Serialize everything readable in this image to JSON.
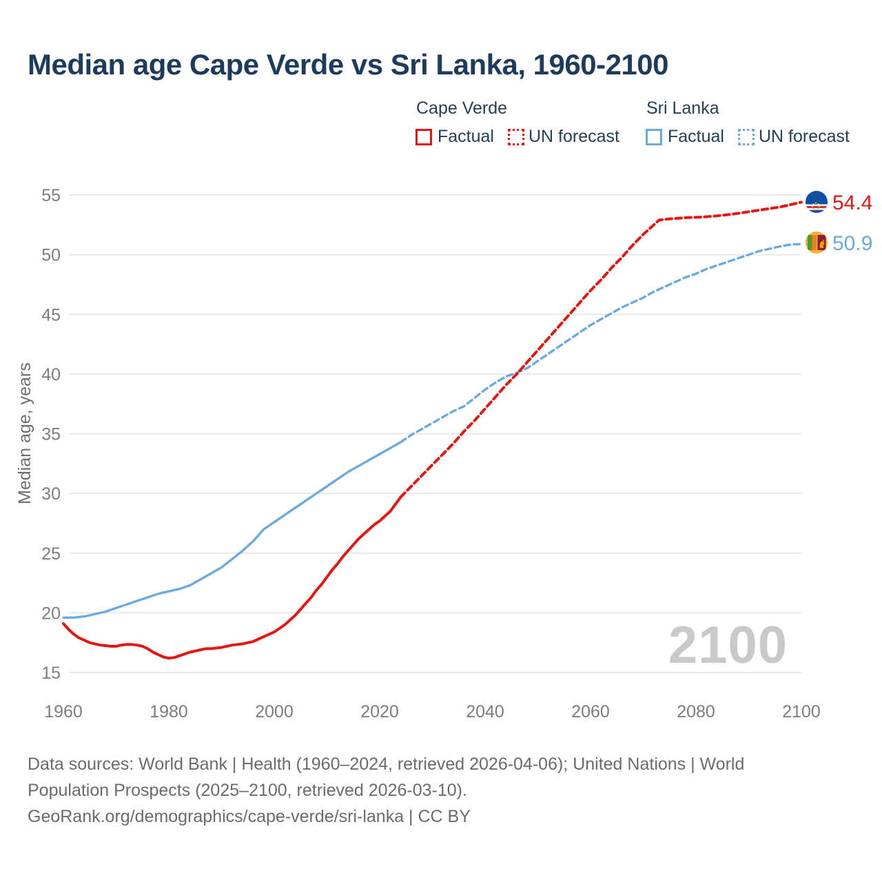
{
  "title": "Median age Cape Verde vs Sri Lanka, 1960-2100",
  "legend": {
    "cape_verde": {
      "label": "Cape Verde",
      "factual": "Factual",
      "forecast": "UN forecast"
    },
    "sri_lanka": {
      "label": "Sri Lanka",
      "factual": "Factual",
      "forecast": "UN forecast"
    }
  },
  "colors": {
    "cape_verde": "#e8150f",
    "sri_lanka": "#6aaae0",
    "title_text": "#1d3a5f",
    "axis_text": "#7d7d7d",
    "grid": "#e8e8e8",
    "watermark": "#c9c9c9",
    "footer_text": "#6b6b6b"
  },
  "watermark": "2100",
  "end_labels": {
    "cape_verde": "54.4",
    "sri_lanka": "50.9"
  },
  "flags": {
    "cape_verde": "cape-verde-flag",
    "sri_lanka": "sri-lanka-flag"
  },
  "footer": {
    "lines": [
      "Data sources: World Bank | Health (1960–2024, retrieved 2026-04-06); United Nations | World",
      "Population Prospects (2025–2100, retrieved 2026-03-10).",
      "GeoRank.org/demographics/cape-verde/sri-lanka | CC BY"
    ]
  },
  "chart_data": {
    "type": "line",
    "title": "Median age Cape Verde vs Sri Lanka, 1960-2100",
    "xlabel": "",
    "ylabel": "Median age, years",
    "xlim": [
      1958,
      2112
    ],
    "ylim": [
      13,
      57
    ],
    "grid": "horizontal",
    "legend_position": "top",
    "yticks": [
      15,
      20,
      25,
      30,
      35,
      40,
      45,
      50,
      55
    ],
    "xticks": [
      1960,
      1980,
      2000,
      2020,
      2040,
      2060,
      2080,
      2100
    ],
    "series": [
      {
        "name": "Sri Lanka — Factual",
        "color_key": "sri_lanka",
        "style": "solid",
        "points": [
          [
            1960,
            19.6
          ],
          [
            1962,
            19.6
          ],
          [
            1964,
            19.7
          ],
          [
            1966,
            19.9
          ],
          [
            1968,
            20.1
          ],
          [
            1970,
            20.4
          ],
          [
            1972,
            20.7
          ],
          [
            1974,
            21.0
          ],
          [
            1976,
            21.3
          ],
          [
            1978,
            21.6
          ],
          [
            1980,
            21.8
          ],
          [
            1982,
            22.0
          ],
          [
            1984,
            22.3
          ],
          [
            1986,
            22.8
          ],
          [
            1988,
            23.3
          ],
          [
            1990,
            23.8
          ],
          [
            1992,
            24.5
          ],
          [
            1994,
            25.2
          ],
          [
            1996,
            26.0
          ],
          [
            1998,
            27.0
          ],
          [
            2000,
            27.6
          ],
          [
            2002,
            28.2
          ],
          [
            2004,
            28.8
          ],
          [
            2006,
            29.4
          ],
          [
            2008,
            30.0
          ],
          [
            2010,
            30.6
          ],
          [
            2012,
            31.2
          ],
          [
            2014,
            31.8
          ],
          [
            2016,
            32.3
          ],
          [
            2018,
            32.8
          ],
          [
            2020,
            33.3
          ],
          [
            2022,
            33.8
          ],
          [
            2024,
            34.3
          ]
        ]
      },
      {
        "name": "Sri Lanka — UN forecast",
        "color_key": "sri_lanka",
        "style": "dashed",
        "points": [
          [
            2024,
            34.3
          ],
          [
            2026,
            34.9
          ],
          [
            2028,
            35.4
          ],
          [
            2030,
            35.9
          ],
          [
            2032,
            36.4
          ],
          [
            2034,
            36.9
          ],
          [
            2036,
            37.3
          ],
          [
            2038,
            38.0
          ],
          [
            2040,
            38.7
          ],
          [
            2042,
            39.3
          ],
          [
            2044,
            39.8
          ],
          [
            2046,
            40.1
          ],
          [
            2048,
            40.5
          ],
          [
            2050,
            41.1
          ],
          [
            2052,
            41.7
          ],
          [
            2054,
            42.3
          ],
          [
            2056,
            42.9
          ],
          [
            2058,
            43.5
          ],
          [
            2060,
            44.1
          ],
          [
            2062,
            44.6
          ],
          [
            2064,
            45.1
          ],
          [
            2066,
            45.6
          ],
          [
            2068,
            46.0
          ],
          [
            2070,
            46.4
          ],
          [
            2072,
            46.9
          ],
          [
            2074,
            47.3
          ],
          [
            2076,
            47.7
          ],
          [
            2078,
            48.1
          ],
          [
            2080,
            48.4
          ],
          [
            2082,
            48.8
          ],
          [
            2084,
            49.1
          ],
          [
            2086,
            49.4
          ],
          [
            2088,
            49.7
          ],
          [
            2090,
            50.0
          ],
          [
            2092,
            50.3
          ],
          [
            2094,
            50.5
          ],
          [
            2096,
            50.7
          ],
          [
            2098,
            50.85
          ],
          [
            2100,
            50.9
          ]
        ]
      },
      {
        "name": "Cape Verde — Factual",
        "color_key": "cape_verde",
        "style": "solid",
        "points": [
          [
            1960,
            19.1
          ],
          [
            1961,
            18.6
          ],
          [
            1962,
            18.2
          ],
          [
            1963,
            17.9
          ],
          [
            1964,
            17.7
          ],
          [
            1965,
            17.5
          ],
          [
            1966,
            17.4
          ],
          [
            1967,
            17.3
          ],
          [
            1968,
            17.25
          ],
          [
            1969,
            17.2
          ],
          [
            1970,
            17.2
          ],
          [
            1971,
            17.3
          ],
          [
            1972,
            17.35
          ],
          [
            1973,
            17.35
          ],
          [
            1974,
            17.3
          ],
          [
            1975,
            17.2
          ],
          [
            1976,
            17.0
          ],
          [
            1977,
            16.7
          ],
          [
            1978,
            16.5
          ],
          [
            1979,
            16.3
          ],
          [
            1980,
            16.2
          ],
          [
            1981,
            16.25
          ],
          [
            1982,
            16.4
          ],
          [
            1983,
            16.55
          ],
          [
            1984,
            16.7
          ],
          [
            1985,
            16.8
          ],
          [
            1986,
            16.9
          ],
          [
            1987,
            17.0
          ],
          [
            1988,
            17.0
          ],
          [
            1989,
            17.05
          ],
          [
            1990,
            17.1
          ],
          [
            1991,
            17.2
          ],
          [
            1992,
            17.3
          ],
          [
            1993,
            17.35
          ],
          [
            1994,
            17.4
          ],
          [
            1995,
            17.5
          ],
          [
            1996,
            17.6
          ],
          [
            1997,
            17.8
          ],
          [
            1998,
            18.0
          ],
          [
            1999,
            18.2
          ],
          [
            2000,
            18.4
          ],
          [
            2001,
            18.7
          ],
          [
            2002,
            19.0
          ],
          [
            2003,
            19.4
          ],
          [
            2004,
            19.8
          ],
          [
            2005,
            20.3
          ],
          [
            2006,
            20.8
          ],
          [
            2007,
            21.3
          ],
          [
            2008,
            21.9
          ],
          [
            2009,
            22.4
          ],
          [
            2010,
            23.0
          ],
          [
            2011,
            23.6
          ],
          [
            2012,
            24.1
          ],
          [
            2013,
            24.7
          ],
          [
            2014,
            25.2
          ],
          [
            2015,
            25.7
          ],
          [
            2016,
            26.2
          ],
          [
            2017,
            26.6
          ],
          [
            2018,
            27.0
          ],
          [
            2019,
            27.4
          ],
          [
            2020,
            27.7
          ],
          [
            2021,
            28.1
          ],
          [
            2022,
            28.5
          ],
          [
            2023,
            29.1
          ],
          [
            2024,
            29.7
          ]
        ]
      },
      {
        "name": "Cape Verde — UN forecast",
        "color_key": "cape_verde",
        "style": "dashed",
        "points": [
          [
            2024,
            29.7
          ],
          [
            2026,
            30.6
          ],
          [
            2028,
            31.5
          ],
          [
            2030,
            32.4
          ],
          [
            2032,
            33.3
          ],
          [
            2034,
            34.2
          ],
          [
            2036,
            35.2
          ],
          [
            2038,
            36.1
          ],
          [
            2040,
            37.1
          ],
          [
            2042,
            38.1
          ],
          [
            2044,
            39.1
          ],
          [
            2046,
            40.0
          ],
          [
            2048,
            41.0
          ],
          [
            2050,
            42.0
          ],
          [
            2052,
            43.0
          ],
          [
            2054,
            44.0
          ],
          [
            2056,
            45.0
          ],
          [
            2058,
            46.0
          ],
          [
            2060,
            47.0
          ],
          [
            2062,
            47.9
          ],
          [
            2064,
            48.9
          ],
          [
            2066,
            49.8
          ],
          [
            2068,
            50.8
          ],
          [
            2070,
            51.7
          ],
          [
            2072,
            52.5
          ],
          [
            2073,
            52.9
          ],
          [
            2075,
            53.0
          ],
          [
            2078,
            53.1
          ],
          [
            2081,
            53.15
          ],
          [
            2084,
            53.25
          ],
          [
            2087,
            53.4
          ],
          [
            2090,
            53.6
          ],
          [
            2093,
            53.8
          ],
          [
            2096,
            54.0
          ],
          [
            2098,
            54.2
          ],
          [
            2100,
            54.4
          ]
        ]
      }
    ]
  }
}
